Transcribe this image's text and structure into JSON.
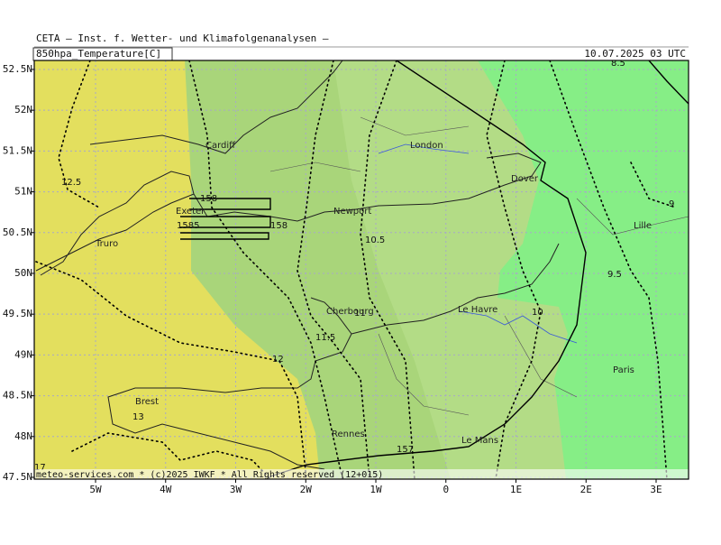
{
  "header": {
    "institute": "CETA — Inst. f. Wetter- und Klimafolgenanalysen —",
    "field": "850hpa_Temperature[C]",
    "valid": "10.07.2025 03 UTC"
  },
  "footer": "meteo-services.com * (c)2025 IWKF * All Rights reserved (12+015)",
  "map": {
    "xlim": [
      -5.875,
      3.463
    ],
    "ylim": [
      47.478,
      52.61
    ],
    "lat_ticks": [
      {
        "value": 52.5,
        "label": "52.5N"
      },
      {
        "value": 52,
        "label": "52N"
      },
      {
        "value": 51.5,
        "label": "51.5N"
      },
      {
        "value": 51,
        "label": "51N"
      },
      {
        "value": 50.5,
        "label": "50.5N"
      },
      {
        "value": 50,
        "label": "50N"
      },
      {
        "value": 49.5,
        "label": "49.5N"
      },
      {
        "value": 49,
        "label": "49N"
      },
      {
        "value": 48.5,
        "label": "48.5N"
      },
      {
        "value": 48,
        "label": "48N"
      },
      {
        "value": 47.5,
        "label": "47.5N"
      }
    ],
    "lon_ticks": [
      {
        "value": -5,
        "label": "5W"
      },
      {
        "value": -4,
        "label": "4W"
      },
      {
        "value": -3,
        "label": "3W"
      },
      {
        "value": -2,
        "label": "2W"
      },
      {
        "value": -1,
        "label": "1W"
      },
      {
        "value": 0,
        "label": "0"
      },
      {
        "value": 1,
        "label": "1E"
      },
      {
        "value": 2,
        "label": "2E"
      },
      {
        "value": 3,
        "label": "3E"
      }
    ],
    "cities": [
      "Cardiff",
      "London",
      "Dover",
      "Exeter",
      "Newport",
      "Truro",
      "Lille",
      "Le Havre",
      "Cherbourg",
      "Paris",
      "Brest",
      "Rennes",
      "Le Mans"
    ],
    "contour_labels": [
      "12.5",
      "12",
      "11.5",
      "11",
      "10.5",
      "10",
      "9.5",
      "9",
      "8.5",
      "13",
      "157",
      "158",
      "1585",
      "158",
      "17"
    ]
  }
}
